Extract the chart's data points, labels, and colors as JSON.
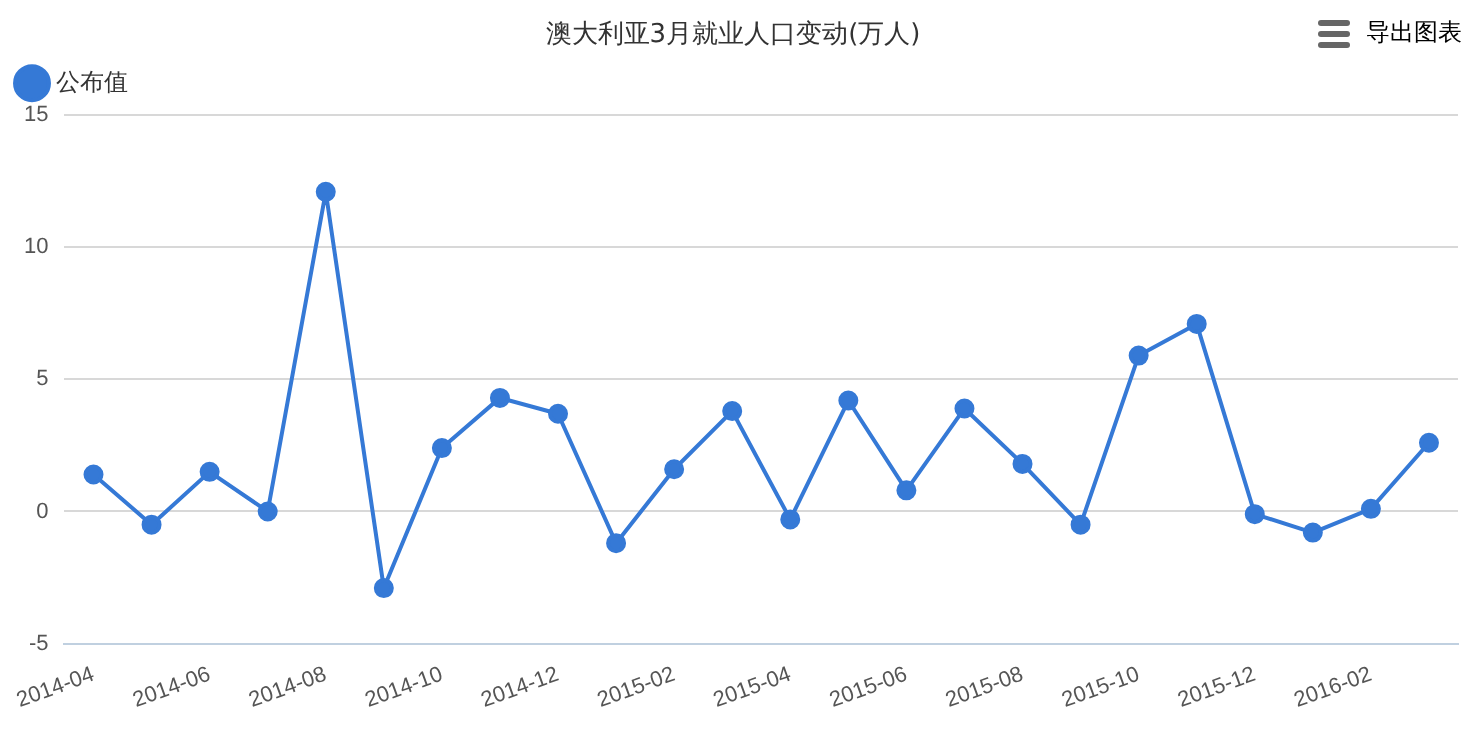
{
  "chart_data": {
    "type": "line",
    "title": "澳大利亚3月就业人口变动(万人)",
    "categories": [
      "2014-04",
      null,
      "2014-06",
      null,
      "2014-08",
      null,
      "2014-10",
      null,
      "2014-12",
      null,
      "2015-02",
      null,
      "2015-04",
      null,
      "2015-06",
      null,
      "2015-08",
      null,
      "2015-10",
      null,
      "2015-12",
      null,
      "2016-02",
      null
    ],
    "series": [
      {
        "name": "公布值",
        "color": "#3579d6",
        "values": [
          1.4,
          -0.5,
          1.5,
          0.0,
          12.1,
          -2.9,
          2.4,
          4.3,
          3.7,
          -1.2,
          1.6,
          3.8,
          -0.3,
          4.2,
          0.8,
          3.9,
          1.8,
          -0.5,
          5.9,
          7.1,
          -0.1,
          -0.8,
          0.1,
          2.6
        ]
      }
    ],
    "ylim": [
      -5,
      15
    ],
    "yticks": [
      -5,
      0,
      5,
      10,
      15
    ],
    "grid": "y",
    "legend": "top left",
    "marker": "circle",
    "line_style": "solid",
    "annotations": [
      "导出图表"
    ]
  }
}
